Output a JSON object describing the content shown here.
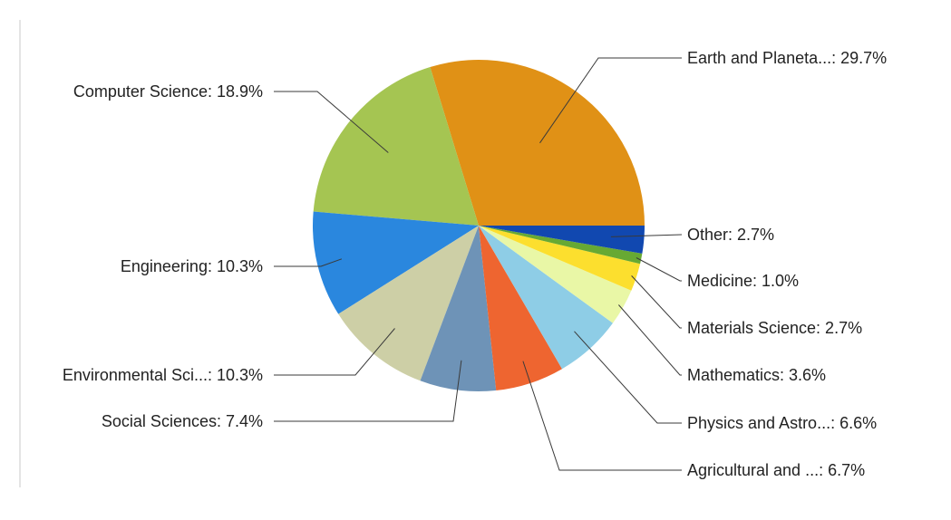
{
  "chart_data": {
    "type": "pie",
    "title": "",
    "start_angle_deg": 0,
    "direction": "counterclockwise",
    "slices": [
      {
        "label": "Earth and Planeta...: 29.7%",
        "category": "Earth and Planeta...",
        "value": 29.7,
        "color": "#E09116"
      },
      {
        "label": "Computer Science: 18.9%",
        "category": "Computer Science",
        "value": 18.9,
        "color": "#A5C552"
      },
      {
        "label": "Engineering: 10.3%",
        "category": "Engineering",
        "value": 10.3,
        "color": "#2A87DE"
      },
      {
        "label": "Environmental Sci...: 10.3%",
        "category": "Environmental Sci...",
        "value": 10.3,
        "color": "#CDCFA6"
      },
      {
        "label": "Social Sciences: 7.4%",
        "category": "Social Sciences",
        "value": 7.4,
        "color": "#6E93B7"
      },
      {
        "label": "Agricultural and ...: 6.7%",
        "category": "Agricultural and ...",
        "value": 6.7,
        "color": "#EE6530"
      },
      {
        "label": "Physics and Astro...: 6.6%",
        "category": "Physics and Astro...",
        "value": 6.6,
        "color": "#8ECDE6"
      },
      {
        "label": "Mathematics: 3.6%",
        "category": "Mathematics",
        "value": 3.6,
        "color": "#E9F7A6"
      },
      {
        "label": "Materials Science: 2.7%",
        "category": "Materials Science",
        "value": 2.7,
        "color": "#FCDF2E"
      },
      {
        "label": "Medicine: 1.0%",
        "category": "Medicine",
        "value": 1.0,
        "color": "#67A933"
      },
      {
        "label": "Other: 2.7%",
        "category": "Other",
        "value": 2.7,
        "color": "#1148B0"
      }
    ]
  }
}
